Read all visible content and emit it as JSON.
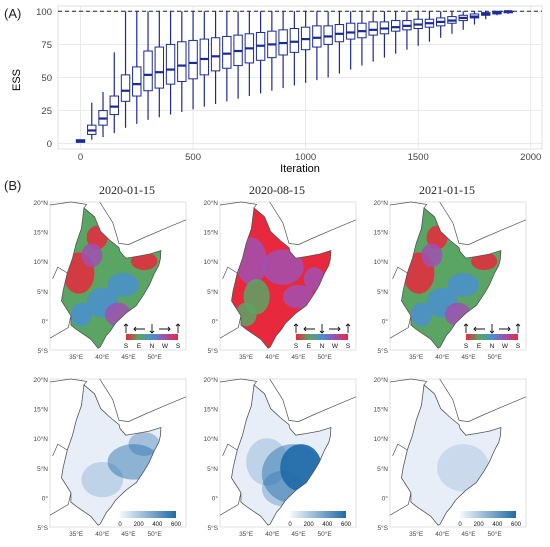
{
  "panels": {
    "a_label": "(A)",
    "b_label": "(B)"
  },
  "chart_data": {
    "type": "box",
    "xlabel": "Iteration",
    "ylabel": "ESS",
    "xlim": [
      -100,
      2050
    ],
    "ylim": [
      -4,
      104
    ],
    "xticks": [
      0,
      500,
      1000,
      1500,
      2000
    ],
    "yticks": [
      0,
      25,
      50,
      75,
      100
    ],
    "reference_line": 100,
    "grid": true,
    "color": "#1a2a9a",
    "boxes": [
      {
        "x": 0,
        "min": 1,
        "q1": 1,
        "median": 2,
        "q3": 3,
        "max": 3
      },
      {
        "x": 50,
        "min": 3,
        "q1": 7,
        "median": 10,
        "q3": 14,
        "max": 31
      },
      {
        "x": 100,
        "min": 5,
        "q1": 14,
        "median": 19,
        "q3": 25,
        "max": 39
      },
      {
        "x": 150,
        "min": 8,
        "q1": 22,
        "median": 28,
        "q3": 36,
        "max": 69
      },
      {
        "x": 200,
        "min": 12,
        "q1": 32,
        "median": 40,
        "q3": 52,
        "max": 100
      },
      {
        "x": 250,
        "min": 15,
        "q1": 36,
        "median": 45,
        "q3": 58,
        "max": 100
      },
      {
        "x": 300,
        "min": 18,
        "q1": 40,
        "median": 52,
        "q3": 70,
        "max": 100
      },
      {
        "x": 350,
        "min": 20,
        "q1": 42,
        "median": 54,
        "q3": 73,
        "max": 100
      },
      {
        "x": 400,
        "min": 22,
        "q1": 45,
        "median": 56,
        "q3": 75,
        "max": 100
      },
      {
        "x": 450,
        "min": 24,
        "q1": 47,
        "median": 59,
        "q3": 77,
        "max": 100
      },
      {
        "x": 500,
        "min": 26,
        "q1": 49,
        "median": 61,
        "q3": 78,
        "max": 100
      },
      {
        "x": 550,
        "min": 28,
        "q1": 52,
        "median": 64,
        "q3": 79,
        "max": 100
      },
      {
        "x": 600,
        "min": 30,
        "q1": 55,
        "median": 66,
        "q3": 80,
        "max": 100
      },
      {
        "x": 650,
        "min": 32,
        "q1": 57,
        "median": 68,
        "q3": 81,
        "max": 100
      },
      {
        "x": 700,
        "min": 34,
        "q1": 59,
        "median": 70,
        "q3": 82,
        "max": 100
      },
      {
        "x": 750,
        "min": 36,
        "q1": 61,
        "median": 72,
        "q3": 83,
        "max": 100
      },
      {
        "x": 800,
        "min": 38,
        "q1": 63,
        "median": 74,
        "q3": 84,
        "max": 100
      },
      {
        "x": 850,
        "min": 40,
        "q1": 65,
        "median": 75,
        "q3": 85,
        "max": 100
      },
      {
        "x": 900,
        "min": 42,
        "q1": 67,
        "median": 76,
        "q3": 86,
        "max": 100
      },
      {
        "x": 950,
        "min": 44,
        "q1": 69,
        "median": 77,
        "q3": 87,
        "max": 100
      },
      {
        "x": 1000,
        "min": 46,
        "q1": 71,
        "median": 79,
        "q3": 88,
        "max": 100
      },
      {
        "x": 1050,
        "min": 48,
        "q1": 73,
        "median": 80,
        "q3": 89,
        "max": 100
      },
      {
        "x": 1100,
        "min": 50,
        "q1": 75,
        "median": 81,
        "q3": 89,
        "max": 100
      },
      {
        "x": 1150,
        "min": 53,
        "q1": 77,
        "median": 83,
        "q3": 90,
        "max": 100
      },
      {
        "x": 1200,
        "min": 56,
        "q1": 79,
        "median": 84,
        "q3": 91,
        "max": 100
      },
      {
        "x": 1250,
        "min": 59,
        "q1": 80,
        "median": 85,
        "q3": 91,
        "max": 100
      },
      {
        "x": 1300,
        "min": 62,
        "q1": 82,
        "median": 86,
        "q3": 92,
        "max": 100
      },
      {
        "x": 1350,
        "min": 65,
        "q1": 83,
        "median": 87,
        "q3": 92,
        "max": 100
      },
      {
        "x": 1400,
        "min": 68,
        "q1": 85,
        "median": 88,
        "q3": 93,
        "max": 100
      },
      {
        "x": 1450,
        "min": 71,
        "q1": 86,
        "median": 89,
        "q3": 93,
        "max": 100
      },
      {
        "x": 1500,
        "min": 74,
        "q1": 87,
        "median": 90,
        "q3": 94,
        "max": 100
      },
      {
        "x": 1550,
        "min": 77,
        "q1": 88,
        "median": 91,
        "q3": 94,
        "max": 100
      },
      {
        "x": 1600,
        "min": 80,
        "q1": 89,
        "median": 92,
        "q3": 95,
        "max": 100
      },
      {
        "x": 1650,
        "min": 83,
        "q1": 91,
        "median": 93,
        "q3": 96,
        "max": 100
      },
      {
        "x": 1700,
        "min": 86,
        "q1": 93,
        "median": 95,
        "q3": 97,
        "max": 100
      },
      {
        "x": 1750,
        "min": 90,
        "q1": 95,
        "median": 96,
        "q3": 98,
        "max": 100
      },
      {
        "x": 1800,
        "min": 94,
        "q1": 97,
        "median": 98,
        "q3": 99,
        "max": 100
      },
      {
        "x": 1850,
        "min": 97,
        "q1": 98,
        "median": 99,
        "q3": 100,
        "max": 100
      },
      {
        "x": 1900,
        "min": 98,
        "q1": 99,
        "median": 100,
        "q3": 100,
        "max": 100
      }
    ]
  },
  "maps": {
    "dates": [
      "2020-01-15",
      "2020-08-15",
      "2021-01-15"
    ],
    "lat_labels": [
      "20°N",
      "15°N",
      "10°N",
      "5°N",
      "0°",
      "5°S"
    ],
    "lon_labels": [
      "35°E",
      "40°E",
      "45°E",
      "50°E"
    ],
    "direction_legend": {
      "letters": [
        "S",
        "E",
        "N",
        "W",
        "S"
      ]
    },
    "density_legend": {
      "ticks": [
        "0",
        "200",
        "400",
        "600"
      ]
    },
    "colors": {
      "red": "#e8283c",
      "green": "#5aa564",
      "blue": "#4a8fd0",
      "magenta": "#a050b0",
      "density_dark": "#1f6aa8",
      "density_light": "#e8eef8",
      "land_outline": "#555555"
    }
  }
}
